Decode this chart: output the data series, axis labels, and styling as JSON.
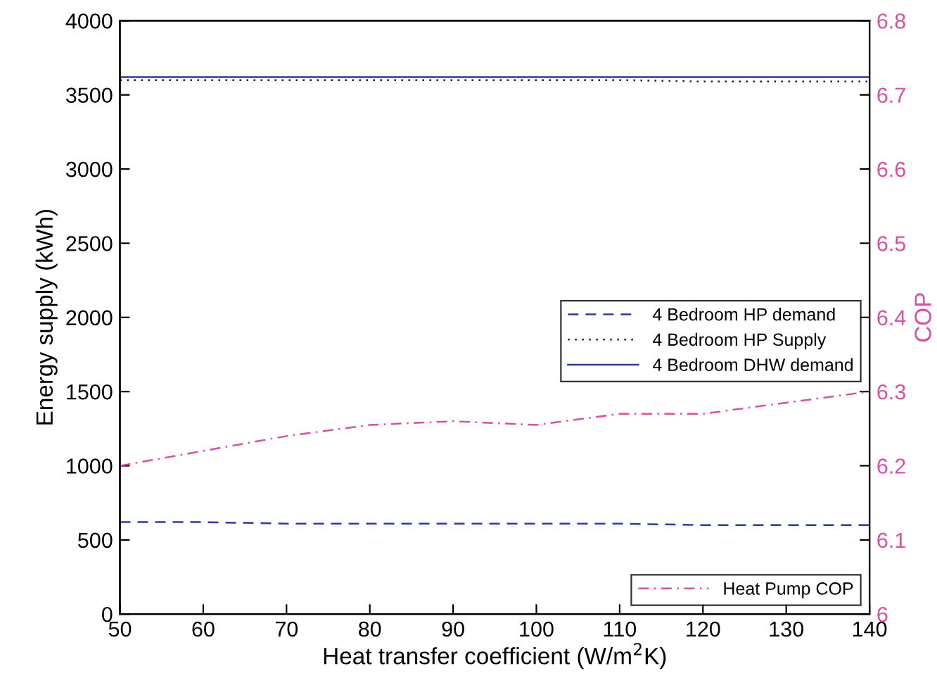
{
  "chart_data": {
    "type": "line",
    "xlabel": "Heat transfer coefficient (W/m$^{2}$K)",
    "ylabel": "Energy supply (kWh)",
    "y2label": "COP",
    "x": [
      50,
      60,
      70,
      80,
      90,
      100,
      110,
      120,
      130,
      140
    ],
    "xlim": [
      50,
      140
    ],
    "xticks": [
      50,
      60,
      70,
      80,
      90,
      100,
      110,
      120,
      130,
      140
    ],
    "ylim": [
      0,
      4000
    ],
    "yticks": [
      0,
      500,
      1000,
      1500,
      2000,
      2500,
      3000,
      3500,
      4000
    ],
    "y2lim": [
      6,
      6.8
    ],
    "y2ticks": [
      6,
      6.1,
      6.2,
      6.3,
      6.4,
      6.5,
      6.6,
      6.7,
      6.8
    ],
    "legend": "right",
    "grid": false,
    "marker": "none",
    "series": [
      {
        "name": "4 Bedroom HP demand",
        "color": "#2b3aa8",
        "line_style": "dashed",
        "values": [
          620,
          620,
          610,
          610,
          610,
          610,
          610,
          600,
          600,
          600
        ]
      },
      {
        "name": "4 Bedroom HP Supply",
        "color": "#1a1a4a",
        "line_style": "dotted",
        "values": [
          3600,
          3600,
          3600,
          3600,
          3600,
          3600,
          3600,
          3590,
          3590,
          3590
        ]
      },
      {
        "name": "4 Bedroom DHW demand",
        "color": "#2b3aa8",
        "line_style": "solid",
        "values": [
          3620,
          3620,
          3620,
          3620,
          3620,
          3620,
          3620,
          3620,
          3620,
          3620
        ]
      },
      {
        "name": "Heat Pump COP",
        "color": "#d94fa6",
        "line_style": "dashdot",
        "axis": "y2",
        "values": [
          6.2,
          6.22,
          6.24,
          6.255,
          6.26,
          6.255,
          6.27,
          6.27,
          6.285,
          6.3
        ]
      }
    ]
  }
}
